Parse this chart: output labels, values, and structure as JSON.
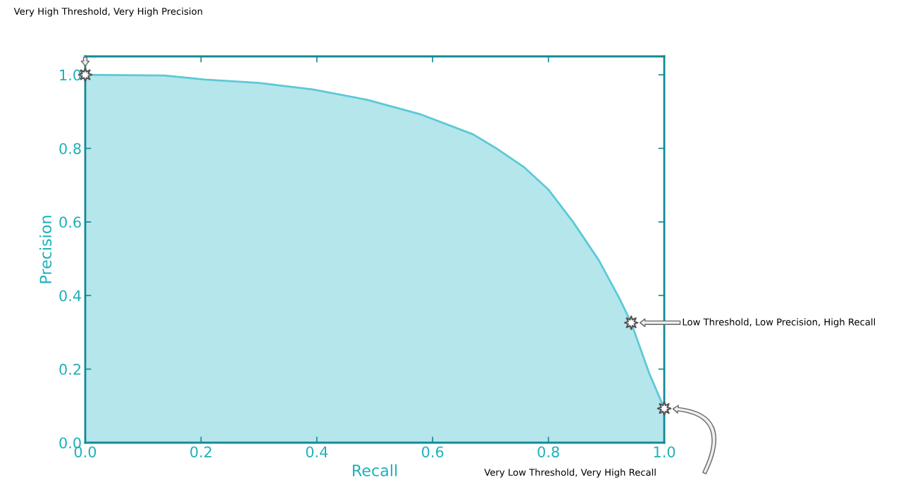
{
  "chart_data": {
    "type": "area",
    "xlabel": "Recall",
    "ylabel": "Precision",
    "x": [
      0.0,
      0.137,
      0.207,
      0.3,
      0.393,
      0.487,
      0.58,
      0.67,
      0.713,
      0.757,
      0.8,
      0.843,
      0.887,
      0.922,
      0.943,
      0.974,
      1.0
    ],
    "series": [
      {
        "color": "#5cc9d6",
        "values": [
          1.0,
          0.998,
          0.987,
          0.978,
          0.96,
          0.932,
          0.892,
          0.838,
          0.797,
          0.75,
          0.688,
          0.599,
          0.496,
          0.394,
          0.326,
          0.189,
          0.093
        ]
      },
      {
        "type": "scatter",
        "marker": "star",
        "color": "#555555",
        "x": [
          0.0,
          0.943,
          1.0
        ],
        "values": [
          1.0,
          0.326,
          0.093
        ]
      }
    ],
    "xlim": [
      0.0,
      1.0
    ],
    "ylim": [
      0.0,
      1.05
    ],
    "xticks": [
      {
        "value": 0.0,
        "label": "0.0"
      },
      0.2,
      0.4,
      0.6,
      0.8,
      {
        "value": 1.0,
        "label": "1.0"
      }
    ],
    "yticks": [
      {
        "value": 0.0,
        "label": "0.0"
      },
      0.2,
      0.4,
      0.6,
      0.8,
      {
        "value": 1.0,
        "label": "1.0"
      }
    ],
    "grid": false,
    "annotations": [
      "Very High Threshold, Very High Precision",
      "Low Threshold, Low Precision, High Recall",
      "Very Low Threshold, Very High Recall"
    ]
  }
}
